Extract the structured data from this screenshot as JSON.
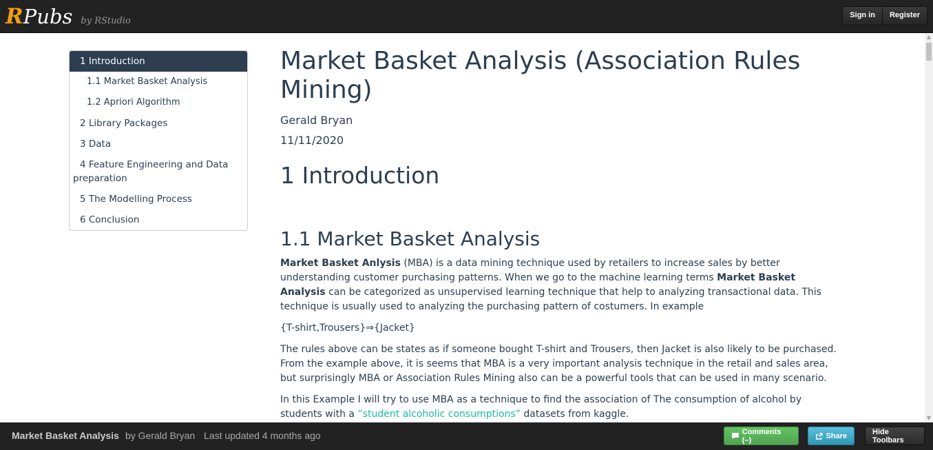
{
  "header": {
    "logo_r": "R",
    "logo_pubs": "Pubs",
    "logo_by": "by RStudio",
    "sign_in": "Sign in",
    "register": "Register"
  },
  "toc": {
    "items": [
      {
        "label": "1 Introduction"
      },
      {
        "label": "1.1 Market Basket Analysis"
      },
      {
        "label": "1.2 Apriori Algorithm"
      },
      {
        "label": "2 Library Packages"
      },
      {
        "label": "3 Data"
      },
      {
        "label": "4 Feature Engineering and Data preparation"
      },
      {
        "label": "5 The Modelling Process"
      },
      {
        "label": "6 Conclusion"
      }
    ]
  },
  "document": {
    "title": "Market Basket Analysis (Association Rules Mining)",
    "author": "Gerald Bryan",
    "date": "11/11/2020",
    "section1": "1 Introduction",
    "section1_1": "1.1 Market Basket Analysis",
    "p1_bold": "Market Basket Anlysis",
    "p1_a": " (MBA) is a data mining technique used by retailers to increase sales by better understanding customer purchasing patterns. When we go to the machine learning terms ",
    "p1_bold2": "Market Basket Analysis",
    "p1_b": " can be categorized as unsupervised learning technique that help to analyzing transactional data. This technique is usually used to analyzing the purchasing pattern of costumers. In example",
    "rule": "{T-shirt,Trousers}⇒{Jacket}",
    "p2": "The rules above can be states as if someone bought T-shirt and Trousers, then Jacket is also likely to be purchased. From the example above, it is seems that MBA is a very important analysis technique in the retail and sales area, but surprisingly MBA or Association Rules Mining also can be a powerful tools that can be used in many scenario.",
    "p3_a": "In this Example I will try to use MBA as a technique to find the association of The consumption of alcohol by students with a ",
    "p3_link": "“student alcoholic consumptions”",
    "p3_b": " datasets from kaggle."
  },
  "footer": {
    "doc_title": "Market Basket Analysis",
    "doc_author": "by Gerald Bryan",
    "updated": "Last updated 4 months ago",
    "comments": "Comments (–)",
    "share": "Share",
    "hide": "Hide Toolbars"
  }
}
